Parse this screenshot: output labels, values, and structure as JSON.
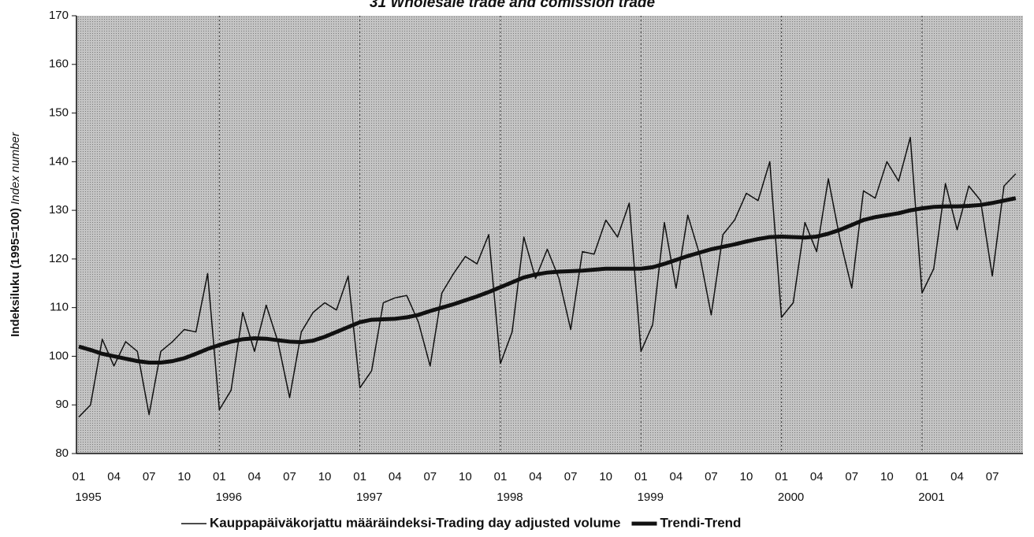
{
  "chart_data": {
    "type": "line",
    "title": "31 Wholesale trade and comission trade",
    "ylabel": {
      "main": "Indeksiluku (1995=100)",
      "sub": "Index number"
    },
    "categories": [
      "01",
      null,
      null,
      "04",
      null,
      null,
      "07",
      null,
      null,
      "10",
      null,
      null,
      "01",
      null,
      null,
      "04",
      null,
      null,
      "07",
      null,
      null,
      "10",
      null,
      null,
      "01",
      null,
      null,
      "04",
      null,
      null,
      "07",
      null,
      null,
      "10",
      null,
      null,
      "01",
      null,
      null,
      "04",
      null,
      null,
      "07",
      null,
      null,
      "10",
      null,
      null,
      "01",
      null,
      null,
      "04",
      null,
      null,
      "07",
      null,
      null,
      "10",
      null,
      null,
      "01",
      null,
      null,
      "04",
      null,
      null,
      "07",
      null,
      null,
      "10",
      null,
      null,
      "01",
      null,
      null,
      "04",
      null,
      null,
      "07",
      null,
      null
    ],
    "years": [
      "1995",
      "1996",
      "1997",
      "1998",
      "1999",
      "2000",
      "2001"
    ],
    "series": [
      {
        "name": "Kauppapäiväkorjattu määräindeksi-Trading day adjusted volume",
        "color": "#111111",
        "width": 1.5,
        "values": [
          87.5,
          90,
          103.5,
          98,
          103,
          101,
          88,
          101,
          103,
          105.5,
          105,
          117,
          89,
          93,
          109,
          101,
          110.5,
          103,
          91.5,
          105,
          109,
          111,
          109.5,
          116.5,
          93.5,
          97,
          111,
          112,
          112.5,
          107,
          98,
          113,
          117,
          120.5,
          119,
          125,
          98.5,
          105,
          124.5,
          116,
          122,
          116,
          105.5,
          121.5,
          121,
          128,
          124.5,
          131.5,
          101,
          106.5,
          127.5,
          114,
          129,
          121,
          108.5,
          125,
          128,
          133.5,
          132,
          140,
          108,
          111,
          127.5,
          121.5,
          136.5,
          124,
          114,
          134,
          132.5,
          140,
          136,
          145,
          113,
          118,
          135.5,
          126,
          135,
          132,
          116.5,
          135,
          137.5
        ]
      },
      {
        "name": "Trendi-Trend",
        "color": "#111111",
        "width": 5,
        "values": [
          102,
          101.3,
          100.5,
          100,
          99.5,
          99,
          98.7,
          98.7,
          99,
          99.6,
          100.5,
          101.5,
          102.3,
          103,
          103.5,
          103.7,
          103.6,
          103.3,
          103,
          102.9,
          103.2,
          104,
          105,
          106,
          107,
          107.5,
          107.6,
          107.7,
          108,
          108.5,
          109.3,
          110,
          110.7,
          111.5,
          112.3,
          113.2,
          114.2,
          115.2,
          116.2,
          116.8,
          117.2,
          117.4,
          117.5,
          117.6,
          117.8,
          118,
          118,
          118,
          118,
          118.3,
          119,
          119.8,
          120.6,
          121.3,
          122,
          122.5,
          123,
          123.6,
          124.1,
          124.5,
          124.6,
          124.5,
          124.4,
          124.6,
          125.2,
          126,
          127,
          128,
          128.6,
          129,
          129.4,
          130,
          130.4,
          130.7,
          130.8,
          130.8,
          130.9,
          131.1,
          131.5,
          132,
          132.5
        ]
      }
    ],
    "ylim": [
      80,
      170
    ],
    "yticks": [
      80,
      90,
      100,
      110,
      120,
      130,
      140,
      150,
      160,
      170
    ],
    "legend": "bottom"
  }
}
